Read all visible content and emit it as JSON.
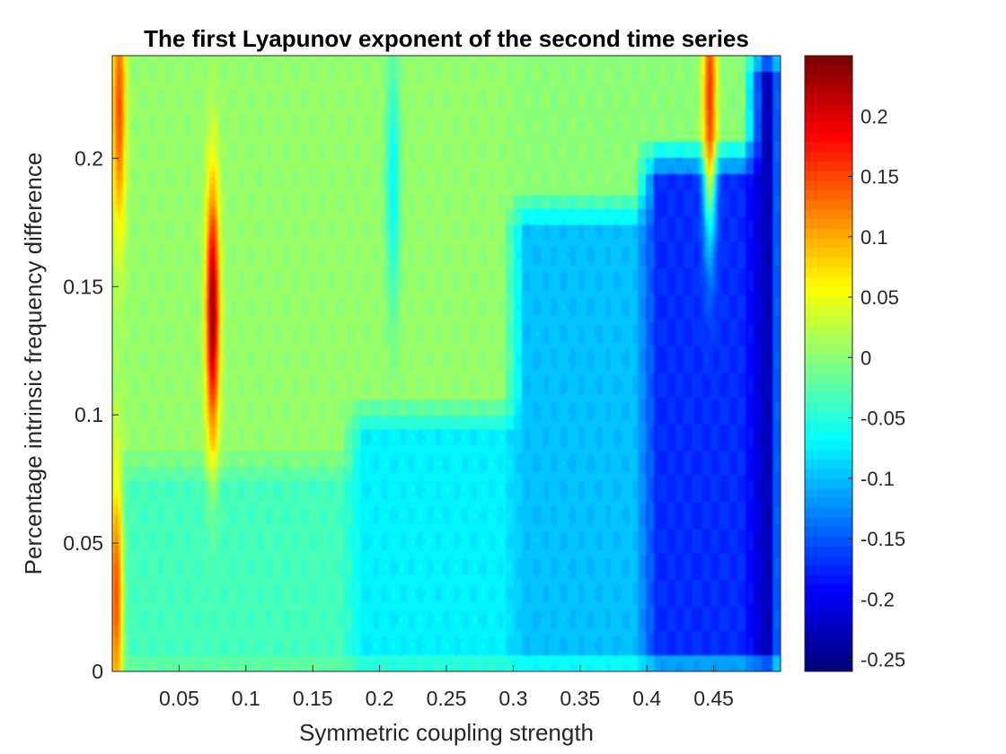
{
  "chart_data": {
    "type": "heatmap",
    "title": "The first Lyapunov exponent of the second time series",
    "xlabel": "Symmetric coupling strength",
    "ylabel": "Percentage intrinsic frequency difference",
    "xlim": [
      0.0,
      0.5
    ],
    "ylim": [
      0.0,
      0.24
    ],
    "xticks": [
      0.05,
      0.1,
      0.15,
      0.2,
      0.25,
      0.3,
      0.35,
      0.4,
      0.45
    ],
    "xtick_labels": [
      "0.05",
      "0.1",
      "0.15",
      "0.2",
      "0.25",
      "0.3",
      "0.35",
      "0.4",
      "0.45"
    ],
    "yticks": [
      0,
      0.05,
      0.1,
      0.15,
      0.2
    ],
    "ytick_labels": [
      "0",
      "0.05",
      "0.1",
      "0.15",
      "0.2"
    ],
    "colormap": "jet",
    "clim": [
      -0.26,
      0.25
    ],
    "colorbar": {
      "ticks": [
        0.2,
        0.15,
        0.1,
        0.05,
        0,
        -0.05,
        -0.1,
        -0.15,
        -0.2,
        -0.25
      ],
      "tick_labels": [
        "0.2",
        "0.15",
        "0.1",
        "0.05",
        "0",
        "-0.05",
        "-0.1",
        "-0.15",
        "-0.2",
        "-0.25"
      ],
      "placement": "right"
    },
    "regions": [
      {
        "x_range": [
          0.0,
          0.18
        ],
        "y_range": [
          0.08,
          0.24
        ],
        "value": 0.005
      },
      {
        "x_range": [
          0.0,
          0.18
        ],
        "y_range": [
          0.0,
          0.08
        ],
        "value": -0.035
      },
      {
        "x_range": [
          0.18,
          0.3
        ],
        "y_range": [
          0.1,
          0.24
        ],
        "value": 0.005
      },
      {
        "x_range": [
          0.18,
          0.3
        ],
        "y_range": [
          0.0,
          0.1
        ],
        "value": -0.075
      },
      {
        "x_range": [
          0.3,
          0.4
        ],
        "y_range": [
          0.18,
          0.24
        ],
        "value": 0.0
      },
      {
        "x_range": [
          0.3,
          0.4
        ],
        "y_range": [
          0.0,
          0.18
        ],
        "value": -0.1
      },
      {
        "x_range": [
          0.4,
          0.48
        ],
        "y_range": [
          0.2,
          0.24
        ],
        "value": 0.0
      },
      {
        "x_range": [
          0.4,
          0.48
        ],
        "y_range": [
          0.0,
          0.2
        ],
        "value": -0.175
      },
      {
        "x_range": [
          0.48,
          0.5
        ],
        "y_range": [
          0.0,
          0.24
        ],
        "value": -0.23
      }
    ],
    "peaks": [
      {
        "x": 0.075,
        "y": 0.14,
        "value": 0.24
      },
      {
        "x": 0.003,
        "y": 0.03,
        "value": 0.15
      },
      {
        "x": 0.005,
        "y": 0.22,
        "value": 0.15
      },
      {
        "x": 0.447,
        "y": 0.225,
        "value": 0.16
      },
      {
        "x": 0.21,
        "y": 0.19,
        "value": -0.07
      }
    ]
  }
}
